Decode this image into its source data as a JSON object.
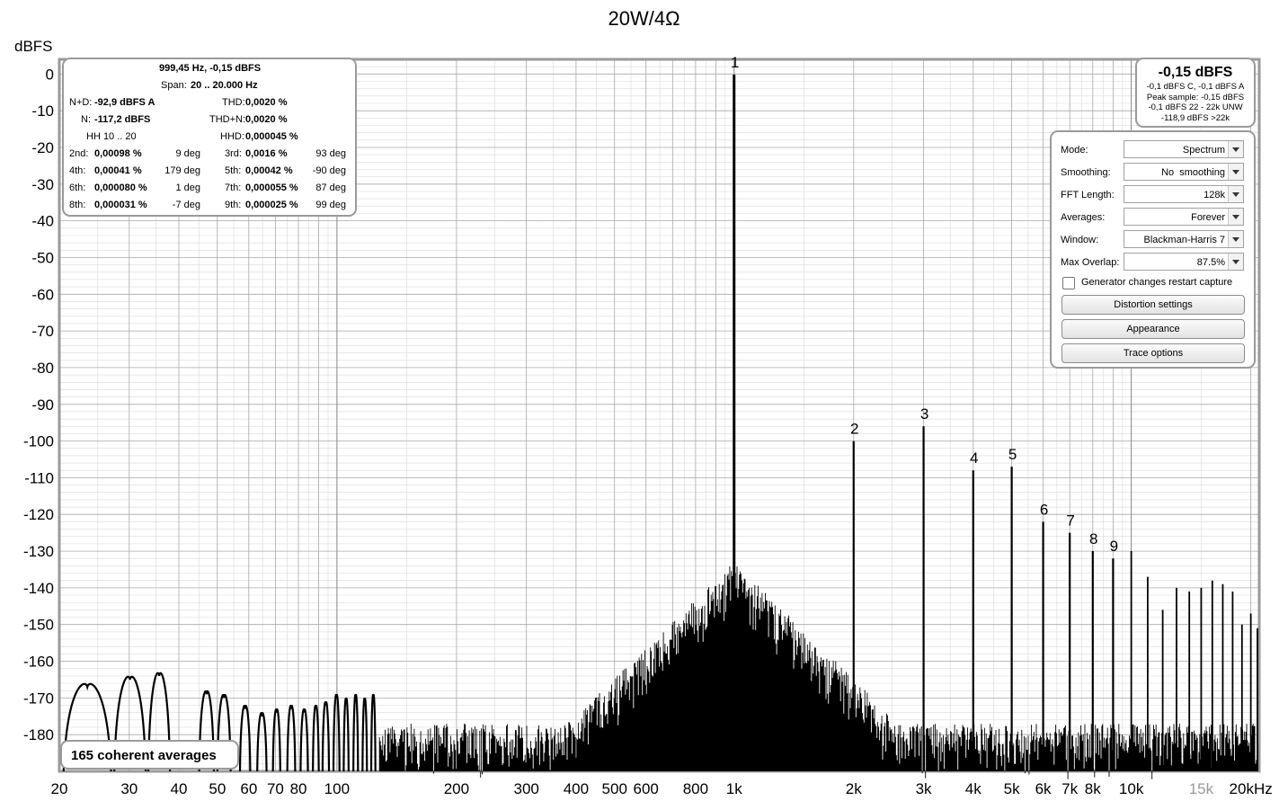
{
  "chart_data": {
    "type": "line",
    "title": "20W/4Ω",
    "ylabel": "dBFS",
    "xlabel": "",
    "xscale": "log",
    "xlim": [
      20,
      21000
    ],
    "ylim": [
      -190,
      4
    ],
    "grid": true,
    "y_ticks": [
      0,
      -10,
      -20,
      -30,
      -40,
      -50,
      -60,
      -70,
      -80,
      -90,
      -100,
      -110,
      -120,
      -130,
      -140,
      -150,
      -160,
      -170,
      -180
    ],
    "y_tick_labels": [
      "0",
      "-10",
      "-20",
      "-30",
      "-40",
      "-50",
      "-60",
      "-70",
      "-80",
      "-90",
      "-100",
      "-110",
      "-120",
      "-130",
      "-140",
      "-150",
      "-160",
      "-170",
      "-180"
    ],
    "x_ticks": [
      {
        "f": 20,
        "label": "20"
      },
      {
        "f": 30,
        "label": "30"
      },
      {
        "f": 40,
        "label": "40"
      },
      {
        "f": 50,
        "label": "50"
      },
      {
        "f": 60,
        "label": "60"
      },
      {
        "f": 70,
        "label": "70"
      },
      {
        "f": 80,
        "label": "80"
      },
      {
        "f": 100,
        "label": "100"
      },
      {
        "f": 200,
        "label": "200"
      },
      {
        "f": 300,
        "label": "300"
      },
      {
        "f": 400,
        "label": "400"
      },
      {
        "f": 500,
        "label": "500"
      },
      {
        "f": 600,
        "label": "600"
      },
      {
        "f": 800,
        "label": "800"
      },
      {
        "f": 1000,
        "label": "1k"
      },
      {
        "f": 2000,
        "label": "2k"
      },
      {
        "f": 3000,
        "label": "3k"
      },
      {
        "f": 4000,
        "label": "4k"
      },
      {
        "f": 5000,
        "label": "5k"
      },
      {
        "f": 6000,
        "label": "6k"
      },
      {
        "f": 7000,
        "label": "7k"
      },
      {
        "f": 8000,
        "label": "8k"
      },
      {
        "f": 10000,
        "label": "10k"
      },
      {
        "f": 15000,
        "label": "15k",
        "muted": true
      },
      {
        "f": 20000,
        "label": "20kHz"
      }
    ],
    "harmonics": [
      {
        "label": "1",
        "f": 1000,
        "db": -0.15
      },
      {
        "label": "2",
        "f": 2000,
        "db": -100
      },
      {
        "label": "3",
        "f": 3000,
        "db": -96
      },
      {
        "label": "4",
        "f": 4000,
        "db": -108
      },
      {
        "label": "5",
        "f": 5000,
        "db": -107
      },
      {
        "label": "6",
        "f": 6000,
        "db": -122
      },
      {
        "label": "7",
        "f": 7000,
        "db": -125
      },
      {
        "label": "8",
        "f": 8000,
        "db": -130
      },
      {
        "label": "9",
        "f": 9000,
        "db": -132
      }
    ],
    "higher_harmonics": [
      {
        "f": 10000,
        "db": -130
      },
      {
        "f": 11000,
        "db": -137
      },
      {
        "f": 12000,
        "db": -146
      },
      {
        "f": 13000,
        "db": -140
      },
      {
        "f": 14000,
        "db": -141
      },
      {
        "f": 15000,
        "db": -140
      },
      {
        "f": 16000,
        "db": -138
      },
      {
        "f": 17000,
        "db": -139
      },
      {
        "f": 18000,
        "db": -141
      },
      {
        "f": 19000,
        "db": -150
      },
      {
        "f": 20000,
        "db": -147
      },
      {
        "f": 21000,
        "db": -151
      }
    ],
    "low_freq_lobes": [
      {
        "f1": 20.5,
        "f2": 27,
        "db": -167
      },
      {
        "f1": 27.5,
        "f2": 33,
        "db": -165
      },
      {
        "f1": 33.5,
        "f2": 38,
        "db": -164
      },
      {
        "f1": 45,
        "f2": 49,
        "db": -169
      },
      {
        "f1": 50,
        "f2": 54,
        "db": -170
      },
      {
        "f1": 57,
        "f2": 60.5,
        "db": -173
      },
      {
        "f1": 63,
        "f2": 66.5,
        "db": -175
      },
      {
        "f1": 69,
        "f2": 72,
        "db": -174
      },
      {
        "f1": 75,
        "f2": 78.5,
        "db": -173
      },
      {
        "f1": 81,
        "f2": 84.5,
        "db": -174
      },
      {
        "f1": 87,
        "f2": 90,
        "db": -173
      },
      {
        "f1": 92,
        "f2": 95.5,
        "db": -172
      },
      {
        "f1": 98,
        "f2": 101.5,
        "db": -170
      },
      {
        "f1": 104,
        "f2": 107,
        "db": -171
      },
      {
        "f1": 110,
        "f2": 113,
        "db": -170
      },
      {
        "f1": 116,
        "f2": 119,
        "db": -171
      },
      {
        "f1": 122,
        "f2": 125,
        "db": -170
      }
    ],
    "noise_floor_db": -183,
    "fundamental_skirt": {
      "peak_db": -133,
      "halfwidth_decades": 0.12
    }
  },
  "distortion": {
    "header": "999,45 Hz, -0,15 dBFS",
    "span_label": "Span:",
    "span_value": "20 .. 20.000 Hz",
    "nd_label": "N+D:",
    "nd_value": "-92,9 dBFS A",
    "thd_label": "THD:",
    "thd_value": "0,0020 %",
    "n_label": "N:",
    "n_value": "-117,2 dBFS",
    "thdn_label": "THD+N:",
    "thdn_value": "0,0020 %",
    "hh_label": "HH 10 .. 20",
    "hhd_label": "HHD:",
    "hhd_value": "0,000045 %",
    "rows": [
      {
        "l1": "2nd:",
        "v1": "0,00098 %",
        "p1": "9 deg",
        "l2": "3rd:",
        "v2": "0,0016 %",
        "p2": "93 deg"
      },
      {
        "l1": "4th:",
        "v1": "0,00041 %",
        "p1": "179 deg",
        "l2": "5th:",
        "v2": "0,00042 %",
        "p2": "-90 deg"
      },
      {
        "l1": "6th:",
        "v1": "0,000080 %",
        "p1": "1 deg",
        "l2": "7th:",
        "v2": "0,000055 %",
        "p2": "87 deg"
      },
      {
        "l1": "8th:",
        "v1": "0,000031 %",
        "p1": "-7 deg",
        "l2": "9th:",
        "v2": "0,000025 %",
        "p2": "99 deg"
      }
    ]
  },
  "levels": {
    "main": "-0,15 dBFS",
    "lines": [
      "-0,1 dBFS C, -0,1 dBFS A",
      "Peak sample: -0,15 dBFS",
      "-0,1 dBFS 22 - 22k UNW",
      "-118,9 dBFS >22k"
    ]
  },
  "controls": {
    "rows": [
      {
        "label": "Mode:",
        "value": "Spectrum"
      },
      {
        "label": "Smoothing:",
        "value": "No  smoothing"
      },
      {
        "label": "FFT Length:",
        "value": "128k"
      },
      {
        "label": "Averages:",
        "value": "Forever"
      },
      {
        "label": "Window:",
        "value": "Blackman-Harris 7"
      },
      {
        "label": "Max Overlap:",
        "value": "87.5%"
      }
    ],
    "checkbox_label": "Generator changes restart capture",
    "checkbox_checked": false,
    "buttons": [
      "Distortion settings",
      "Appearance",
      "Trace options"
    ]
  },
  "averages_label": "165 coherent averages",
  "colors": {
    "trace": "#000000",
    "grid_major": "#a8a8a8",
    "grid_minor": "#d9d9d9",
    "frame": "#9a9a9a",
    "muted_tick": "#9a9a9a"
  }
}
